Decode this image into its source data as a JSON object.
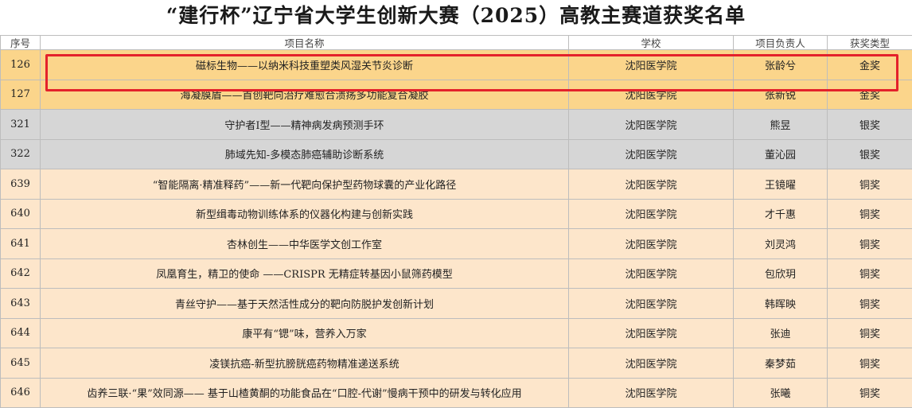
{
  "title": "“建行杯”辽宁省大学生创新大赛（2025）高教主赛道获奖名单",
  "table": {
    "headers": [
      "序号",
      "项目名称",
      "学校",
      "项目负责人",
      "获奖类型"
    ],
    "rows": [
      {
        "no": "126",
        "name": "磁标生物——以纳米科技重塑类风湿关节炎诊断",
        "school": "沈阳医学院",
        "lead": "张龄兮",
        "award": "金奖",
        "tier": "gold"
      },
      {
        "no": "127",
        "name": "海凝膜盾——首创靶向治疗难愈合溃疡多功能复合凝胶",
        "school": "沈阳医学院",
        "lead": "张新锐",
        "award": "金奖",
        "tier": "gold"
      },
      {
        "no": "321",
        "name": "守护者I型——精神病发病预测手环",
        "school": "沈阳医学院",
        "lead": "熊昱",
        "award": "银奖",
        "tier": "silver"
      },
      {
        "no": "322",
        "name": "肺域先知-多模态肺癌辅助诊断系统",
        "school": "沈阳医学院",
        "lead": "董沁园",
        "award": "银奖",
        "tier": "silver"
      },
      {
        "no": "639",
        "name": "“智能隔离·精准释药”——新一代靶向保护型药物球囊的产业化路径",
        "school": "沈阳医学院",
        "lead": "王镜曜",
        "award": "铜奖",
        "tier": "bronze"
      },
      {
        "no": "640",
        "name": "新型缉毒动物训练体系的仪器化构建与创新实践",
        "school": "沈阳医学院",
        "lead": "才千惠",
        "award": "铜奖",
        "tier": "bronze"
      },
      {
        "no": "641",
        "name": "杏林创生——中华医学文创工作室",
        "school": "沈阳医学院",
        "lead": "刘灵鸿",
        "award": "铜奖",
        "tier": "bronze"
      },
      {
        "no": "642",
        "name": "凤凰育生，精卫的使命 ——CRISPR 无精症转基因小鼠筛药模型",
        "school": "沈阳医学院",
        "lead": "包欣玥",
        "award": "铜奖",
        "tier": "bronze"
      },
      {
        "no": "643",
        "name": "青丝守护——基于天然活性成分的靶向防脱护发创新计划",
        "school": "沈阳医学院",
        "lead": "韩晖映",
        "award": "铜奖",
        "tier": "bronze"
      },
      {
        "no": "644",
        "name": "康平有“锶”味，营养入万家",
        "school": "沈阳医学院",
        "lead": "张迪",
        "award": "铜奖",
        "tier": "bronze"
      },
      {
        "no": "645",
        "name": "凌镁抗癌-新型抗膀胱癌药物精准递送系统",
        "school": "沈阳医学院",
        "lead": "秦梦茹",
        "award": "铜奖",
        "tier": "bronze"
      },
      {
        "no": "646",
        "name": "齿养三联·“果”效同源—— 基于山楂黄酮的功能食品在“口腔-代谢”慢病干预中的研发与转化应用",
        "school": "沈阳医学院",
        "lead": "张曦",
        "award": "铜奖",
        "tier": "bronze"
      }
    ]
  }
}
